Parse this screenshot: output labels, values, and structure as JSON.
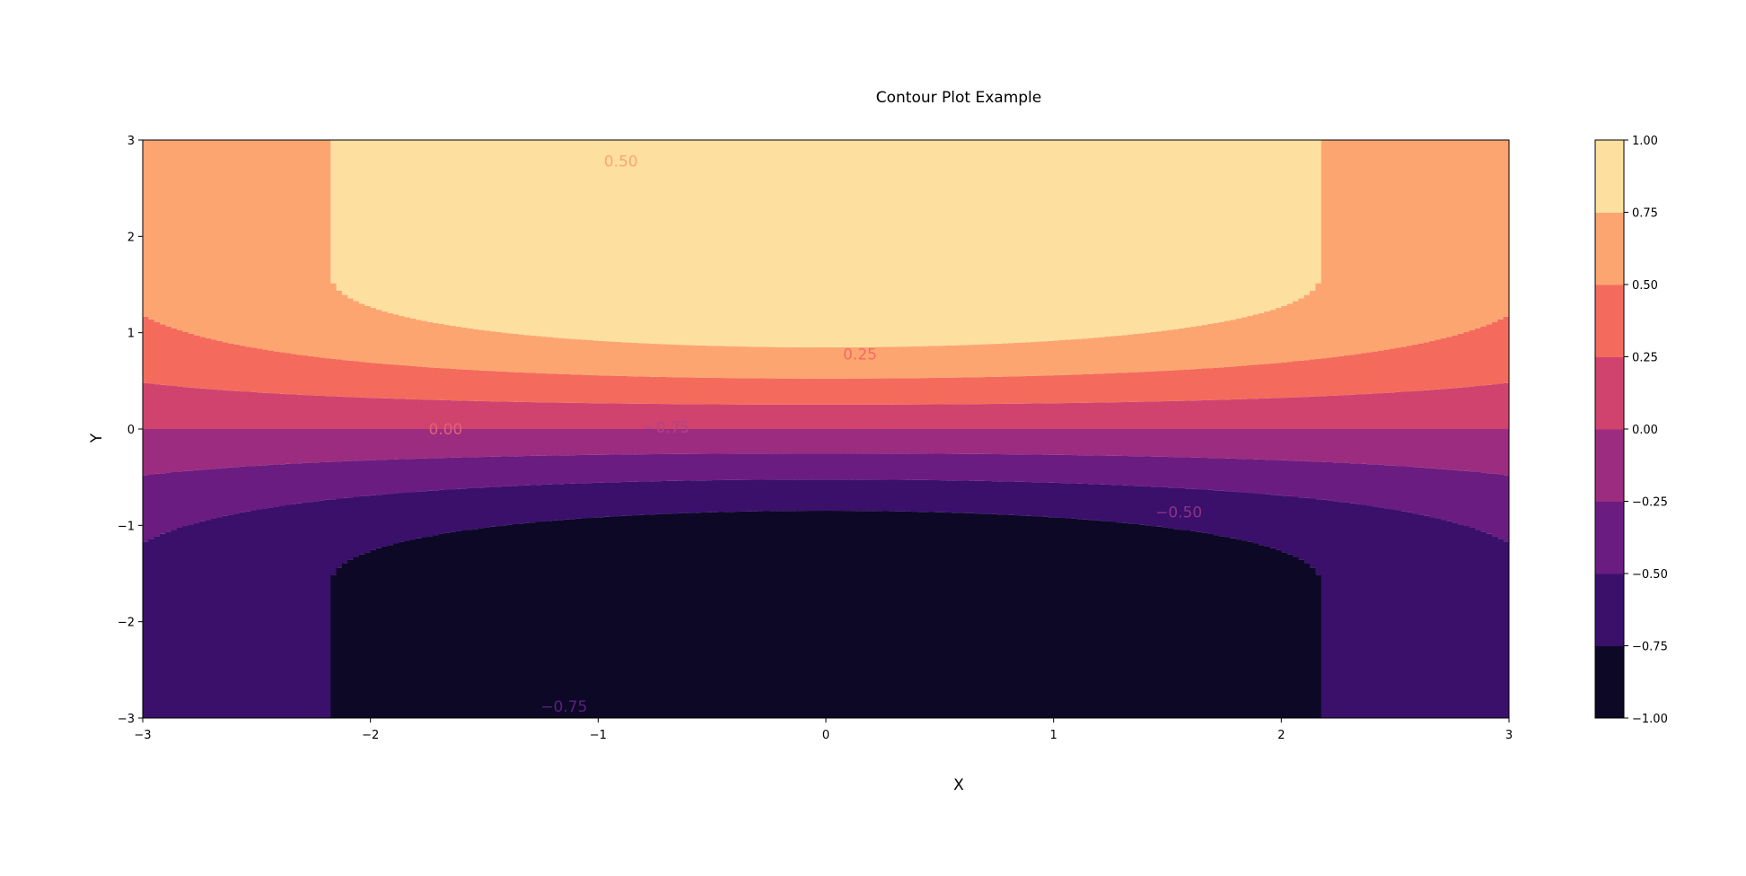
{
  "chart_data": {
    "type": "heatmap",
    "subtype": "filled-contour",
    "title": "Contour Plot Example",
    "xlabel": "X",
    "ylabel": "Y",
    "xlim": [
      -3,
      3
    ],
    "ylim": [
      -3,
      3
    ],
    "x_ticks": [
      -3,
      -2,
      -1,
      0,
      1,
      2,
      3
    ],
    "y_ticks": [
      -3,
      -2,
      -1,
      0,
      1,
      2,
      3
    ],
    "x_tick_labels": [
      "−3",
      "−2",
      "−1",
      "0",
      "1",
      "2",
      "3"
    ],
    "y_tick_labels": [
      "−3",
      "−2",
      "−1",
      "0",
      "1",
      "2",
      "3"
    ],
    "function": "sin(y) * cos(x / 3) approx",
    "grid": false,
    "colormap": "magma",
    "levels": [
      -1.0,
      -0.75,
      -0.5,
      -0.25,
      0.0,
      0.25,
      0.5,
      0.75,
      1.0
    ],
    "level_colors": [
      "#0c0826",
      "#3a106b",
      "#6b1c80",
      "#9b2c80",
      "#d0436e",
      "#f46b5d",
      "#fda571",
      "#fde0a0"
    ],
    "colorbar": {
      "placement": "right",
      "tick_values": [
        1.0,
        0.75,
        0.5,
        0.25,
        0.0,
        -0.25,
        -0.5,
        -0.75,
        -1.0
      ],
      "tick_labels": [
        "1.00",
        "0.75",
        "0.50",
        "0.25",
        "0.00",
        "−0.25",
        "−0.50",
        "−0.75",
        "−1.00"
      ]
    },
    "contour_labels": [
      {
        "text": "0.50",
        "x": -0.9,
        "y": 2.78,
        "color": "#fda571"
      },
      {
        "text": "0.25",
        "x": 0.15,
        "y": 0.78,
        "color": "#f46b5d"
      },
      {
        "text": "0.00",
        "x": -1.67,
        "y": 0.0,
        "color": "#e0607a"
      },
      {
        "text": "−0.75",
        "x": -0.7,
        "y": 0.02,
        "color": "#b04585"
      },
      {
        "text": "−0.50",
        "x": 1.55,
        "y": -0.86,
        "color": "#8e3088"
      },
      {
        "text": "−0.75",
        "x": -1.15,
        "y": -2.88,
        "color": "#5a2080"
      }
    ]
  }
}
